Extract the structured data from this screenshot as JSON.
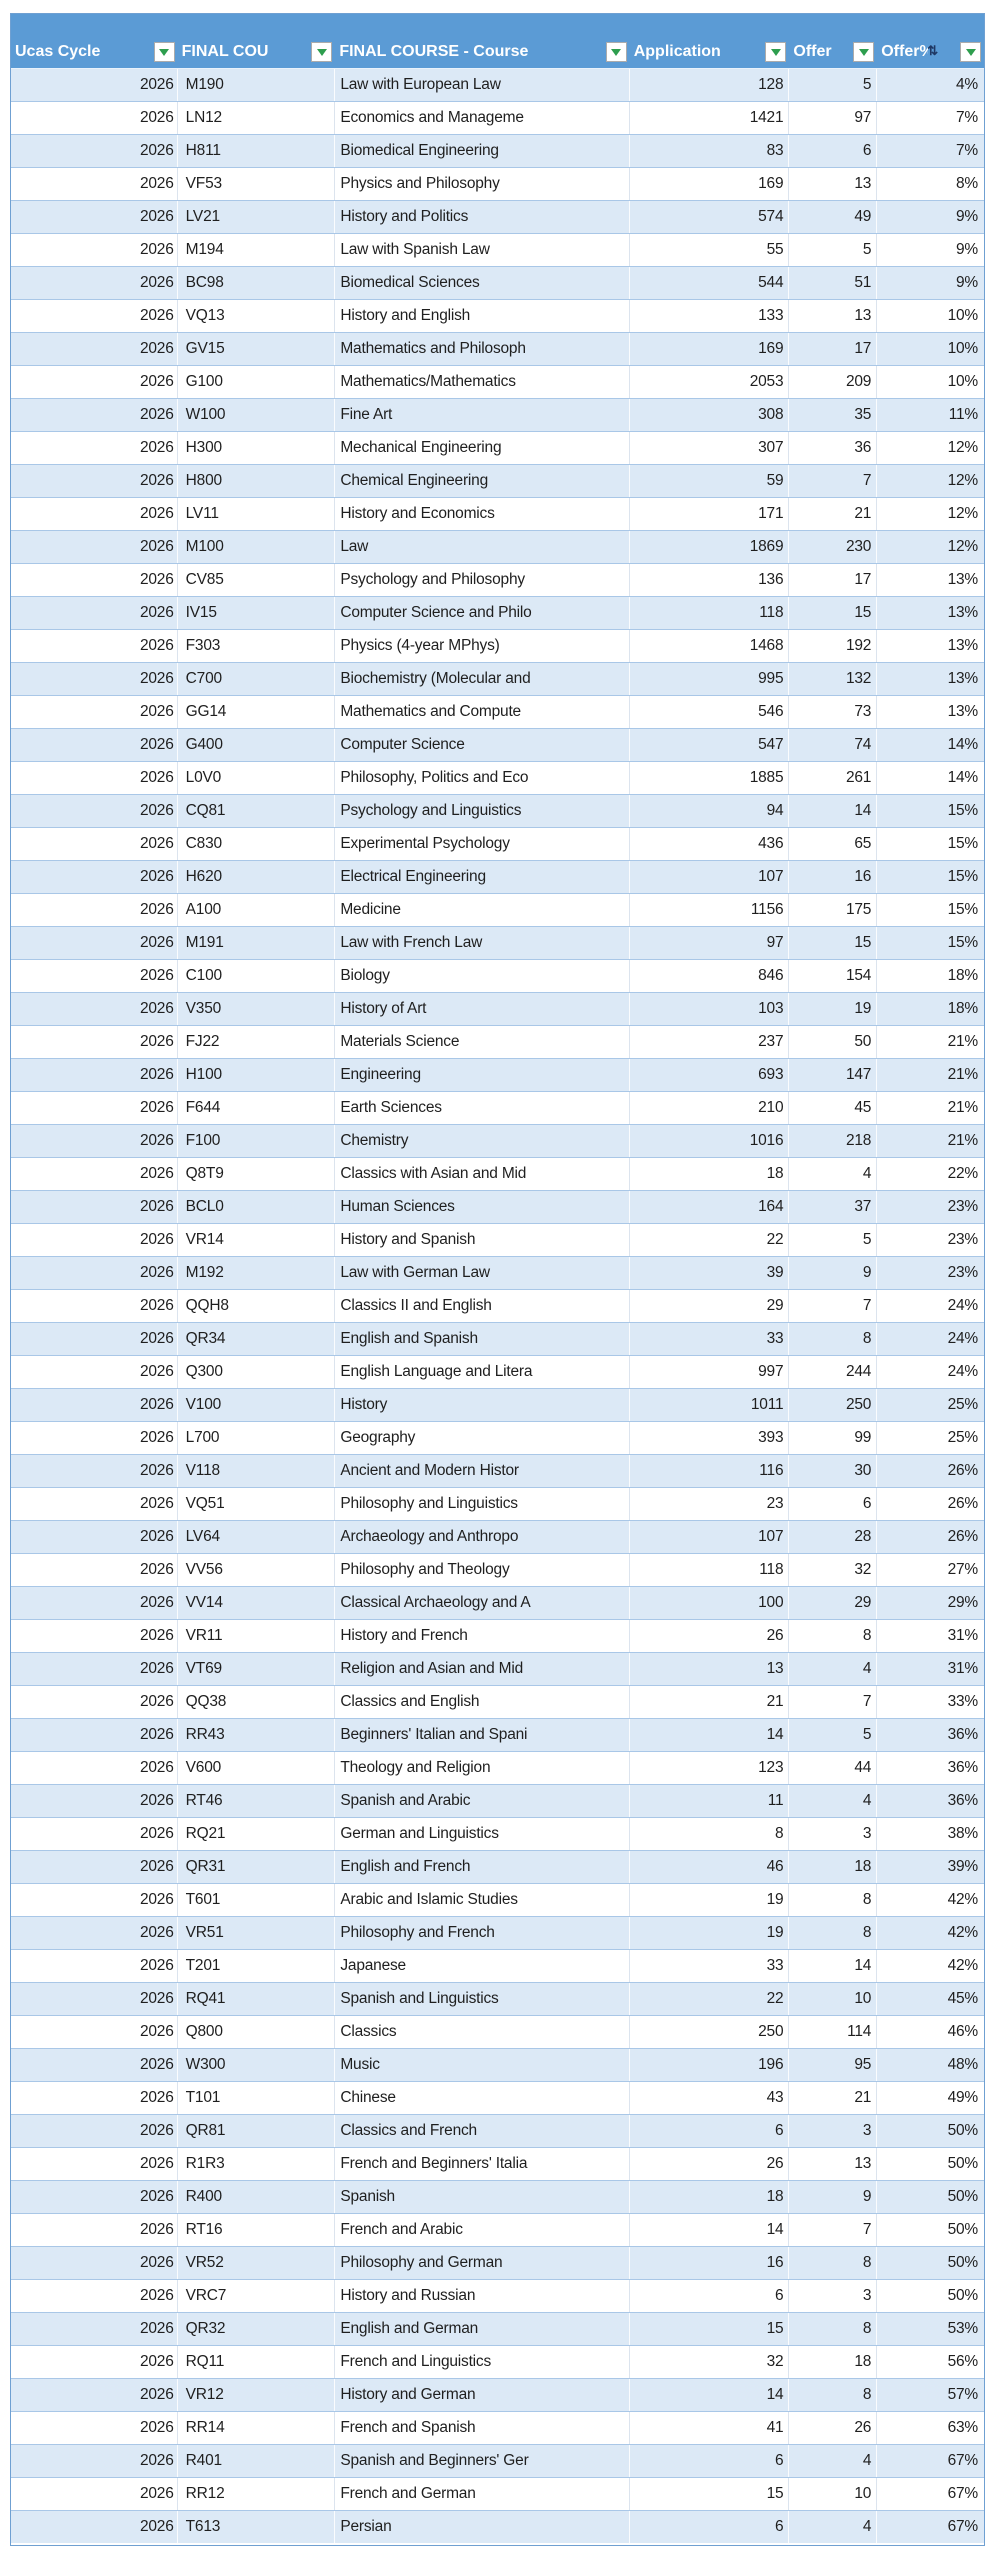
{
  "colors": {
    "header_bg": "#5B9BD5",
    "header_text": "#FFFFFF",
    "band_row": "#DCE9F6",
    "row_border": "#A9C7E7",
    "filter_arrow_green": "#2E9E4E",
    "sort_indicator_dark": "#1F3864"
  },
  "table": {
    "headers": [
      {
        "label": "Ucas Cycle"
      },
      {
        "label": "FINAL COU"
      },
      {
        "label": "FINAL COURSE - Course"
      },
      {
        "label": "Application"
      },
      {
        "label": "Offer"
      },
      {
        "label": "Offer%",
        "sort_indicator": "⇅"
      }
    ],
    "filter_icon": "▼",
    "rows": [
      [
        2026,
        "M190",
        "Law with European Law",
        128,
        5,
        "4%"
      ],
      [
        2026,
        "LN12",
        "Economics and Manageme",
        1421,
        97,
        "7%"
      ],
      [
        2026,
        "H811",
        "Biomedical Engineering",
        83,
        6,
        "7%"
      ],
      [
        2026,
        "VF53",
        "Physics and Philosophy",
        169,
        13,
        "8%"
      ],
      [
        2026,
        "LV21",
        "History and Politics",
        574,
        49,
        "9%"
      ],
      [
        2026,
        "M194",
        "Law with Spanish Law",
        55,
        5,
        "9%"
      ],
      [
        2026,
        "BC98",
        "Biomedical Sciences",
        544,
        51,
        "9%"
      ],
      [
        2026,
        "VQ13",
        "History and English",
        133,
        13,
        "10%"
      ],
      [
        2026,
        "GV15",
        "Mathematics and Philosoph",
        169,
        17,
        "10%"
      ],
      [
        2026,
        "G100",
        "Mathematics/Mathematics",
        2053,
        209,
        "10%"
      ],
      [
        2026,
        "W100",
        "Fine Art",
        308,
        35,
        "11%"
      ],
      [
        2026,
        "H300",
        "Mechanical Engineering",
        307,
        36,
        "12%"
      ],
      [
        2026,
        "H800",
        "Chemical Engineering",
        59,
        7,
        "12%"
      ],
      [
        2026,
        "LV11",
        "History and Economics",
        171,
        21,
        "12%"
      ],
      [
        2026,
        "M100",
        "Law",
        1869,
        230,
        "12%"
      ],
      [
        2026,
        "CV85",
        "Psychology and Philosophy",
        136,
        17,
        "13%"
      ],
      [
        2026,
        "IV15",
        "Computer Science and Philo",
        118,
        15,
        "13%"
      ],
      [
        2026,
        "F303",
        "Physics (4-year MPhys)",
        1468,
        192,
        "13%"
      ],
      [
        2026,
        "C700",
        "Biochemistry (Molecular and",
        995,
        132,
        "13%"
      ],
      [
        2026,
        "GG14",
        "Mathematics and Compute",
        546,
        73,
        "13%"
      ],
      [
        2026,
        "G400",
        "Computer Science",
        547,
        74,
        "14%"
      ],
      [
        2026,
        "L0V0",
        "Philosophy, Politics and Eco",
        1885,
        261,
        "14%"
      ],
      [
        2026,
        "CQ81",
        "Psychology and Linguistics",
        94,
        14,
        "15%"
      ],
      [
        2026,
        "C830",
        "Experimental Psychology",
        436,
        65,
        "15%"
      ],
      [
        2026,
        "H620",
        "Electrical Engineering",
        107,
        16,
        "15%"
      ],
      [
        2026,
        "A100",
        "Medicine",
        1156,
        175,
        "15%"
      ],
      [
        2026,
        "M191",
        "Law with French Law",
        97,
        15,
        "15%"
      ],
      [
        2026,
        "C100",
        "Biology",
        846,
        154,
        "18%"
      ],
      [
        2026,
        "V350",
        "History of Art",
        103,
        19,
        "18%"
      ],
      [
        2026,
        "FJ22",
        "Materials Science",
        237,
        50,
        "21%"
      ],
      [
        2026,
        "H100",
        "Engineering",
        693,
        147,
        "21%"
      ],
      [
        2026,
        "F644",
        "Earth Sciences",
        210,
        45,
        "21%"
      ],
      [
        2026,
        "F100",
        "Chemistry",
        1016,
        218,
        "21%"
      ],
      [
        2026,
        "Q8T9",
        "Classics with Asian and Mid",
        18,
        4,
        "22%"
      ],
      [
        2026,
        "BCL0",
        "Human Sciences",
        164,
        37,
        "23%"
      ],
      [
        2026,
        "VR14",
        "History and Spanish",
        22,
        5,
        "23%"
      ],
      [
        2026,
        "M192",
        "Law with German Law",
        39,
        9,
        "23%"
      ],
      [
        2026,
        "QQH8",
        "Classics II and English",
        29,
        7,
        "24%"
      ],
      [
        2026,
        "QR34",
        "English and Spanish",
        33,
        8,
        "24%"
      ],
      [
        2026,
        "Q300",
        "English Language and Litera",
        997,
        244,
        "24%"
      ],
      [
        2026,
        "V100",
        "History",
        1011,
        250,
        "25%"
      ],
      [
        2026,
        "L700",
        "Geography",
        393,
        99,
        "25%"
      ],
      [
        2026,
        "V118",
        "Ancient and Modern Histor",
        116,
        30,
        "26%"
      ],
      [
        2026,
        "VQ51",
        "Philosophy and Linguistics",
        23,
        6,
        "26%"
      ],
      [
        2026,
        "LV64",
        "Archaeology and Anthropo",
        107,
        28,
        "26%"
      ],
      [
        2026,
        "VV56",
        "Philosophy and Theology",
        118,
        32,
        "27%"
      ],
      [
        2026,
        "VV14",
        "Classical Archaeology and A",
        100,
        29,
        "29%"
      ],
      [
        2026,
        "VR11",
        "History and French",
        26,
        8,
        "31%"
      ],
      [
        2026,
        "VT69",
        "Religion and Asian and Mid",
        13,
        4,
        "31%"
      ],
      [
        2026,
        "QQ38",
        "Classics and English",
        21,
        7,
        "33%"
      ],
      [
        2026,
        "RR43",
        "Beginners' Italian and Spani",
        14,
        5,
        "36%"
      ],
      [
        2026,
        "V600",
        "Theology and Religion",
        123,
        44,
        "36%"
      ],
      [
        2026,
        "RT46",
        "Spanish and Arabic",
        11,
        4,
        "36%"
      ],
      [
        2026,
        "RQ21",
        "German and Linguistics",
        8,
        3,
        "38%"
      ],
      [
        2026,
        "QR31",
        "English and French",
        46,
        18,
        "39%"
      ],
      [
        2026,
        "T601",
        "Arabic and Islamic Studies",
        19,
        8,
        "42%"
      ],
      [
        2026,
        "VR51",
        "Philosophy and French",
        19,
        8,
        "42%"
      ],
      [
        2026,
        "T201",
        "Japanese",
        33,
        14,
        "42%"
      ],
      [
        2026,
        "RQ41",
        "Spanish and Linguistics",
        22,
        10,
        "45%"
      ],
      [
        2026,
        "Q800",
        "Classics",
        250,
        114,
        "46%"
      ],
      [
        2026,
        "W300",
        "Music",
        196,
        95,
        "48%"
      ],
      [
        2026,
        "T101",
        "Chinese",
        43,
        21,
        "49%"
      ],
      [
        2026,
        "QR81",
        "Classics and French",
        6,
        3,
        "50%"
      ],
      [
        2026,
        "R1R3",
        "French and Beginners' Italia",
        26,
        13,
        "50%"
      ],
      [
        2026,
        "R400",
        "Spanish",
        18,
        9,
        "50%"
      ],
      [
        2026,
        "RT16",
        "French and Arabic",
        14,
        7,
        "50%"
      ],
      [
        2026,
        "VR52",
        "Philosophy and German",
        16,
        8,
        "50%"
      ],
      [
        2026,
        "VRC7",
        "History and Russian",
        6,
        3,
        "50%"
      ],
      [
        2026,
        "QR32",
        "English and German",
        15,
        8,
        "53%"
      ],
      [
        2026,
        "RQ11",
        "French and Linguistics",
        32,
        18,
        "56%"
      ],
      [
        2026,
        "VR12",
        "History and German",
        14,
        8,
        "57%"
      ],
      [
        2026,
        "RR14",
        "French and Spanish",
        41,
        26,
        "63%"
      ],
      [
        2026,
        "R401",
        "Spanish and Beginners' Ger",
        6,
        4,
        "67%"
      ],
      [
        2026,
        "RR12",
        "French and German",
        15,
        10,
        "67%"
      ],
      [
        2026,
        "T613",
        "Persian",
        6,
        4,
        "67%"
      ]
    ]
  }
}
